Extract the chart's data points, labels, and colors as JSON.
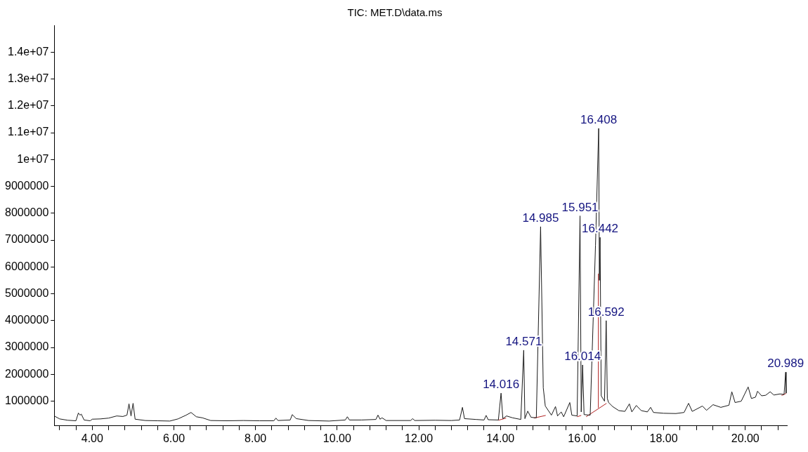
{
  "chart_data": {
    "type": "line",
    "title": "TIC: MET.D\\data.ms",
    "xlim": [
      3.07,
      21.02
    ],
    "ylim": [
      80000,
      15000000
    ],
    "xticks": [
      {
        "value": 3.2,
        "label": null
      },
      {
        "value": 3.6,
        "label": null
      },
      {
        "value": 4,
        "label": "4.00"
      },
      {
        "value": 4.4,
        "label": null
      },
      {
        "value": 4.8,
        "label": null
      },
      {
        "value": 5.2,
        "label": null
      },
      {
        "value": 5.6,
        "label": null
      },
      {
        "value": 6,
        "label": "6.00"
      },
      {
        "value": 6.4,
        "label": null
      },
      {
        "value": 6.8,
        "label": null
      },
      {
        "value": 7.2,
        "label": null
      },
      {
        "value": 7.6,
        "label": null
      },
      {
        "value": 8,
        "label": "8.00"
      },
      {
        "value": 8.4,
        "label": null
      },
      {
        "value": 8.8,
        "label": null
      },
      {
        "value": 9.2,
        "label": null
      },
      {
        "value": 9.6,
        "label": null
      },
      {
        "value": 10,
        "label": "10.00"
      },
      {
        "value": 10.4,
        "label": null
      },
      {
        "value": 10.8,
        "label": null
      },
      {
        "value": 11.2,
        "label": null
      },
      {
        "value": 11.6,
        "label": null
      },
      {
        "value": 12,
        "label": "12.00"
      },
      {
        "value": 12.4,
        "label": null
      },
      {
        "value": 12.8,
        "label": null
      },
      {
        "value": 13.2,
        "label": null
      },
      {
        "value": 13.6,
        "label": null
      },
      {
        "value": 14,
        "label": "14.00"
      },
      {
        "value": 14.4,
        "label": null
      },
      {
        "value": 14.8,
        "label": null
      },
      {
        "value": 15.2,
        "label": null
      },
      {
        "value": 15.6,
        "label": null
      },
      {
        "value": 16,
        "label": "16.00"
      },
      {
        "value": 16.4,
        "label": null
      },
      {
        "value": 16.8,
        "label": null
      },
      {
        "value": 17.2,
        "label": null
      },
      {
        "value": 17.6,
        "label": null
      },
      {
        "value": 18,
        "label": "18.00"
      },
      {
        "value": 18.4,
        "label": null
      },
      {
        "value": 18.8,
        "label": null
      },
      {
        "value": 19.2,
        "label": null
      },
      {
        "value": 19.6,
        "label": null
      },
      {
        "value": 20,
        "label": "20.00"
      },
      {
        "value": 20.4,
        "label": null
      },
      {
        "value": 20.8,
        "label": null
      }
    ],
    "yticks": [
      1000000,
      2000000,
      3000000,
      4000000,
      5000000,
      6000000,
      7000000,
      8000000,
      9000000,
      {
        "value": 10000000,
        "label": "1e+07"
      },
      {
        "value": 11000000,
        "label": "1.1e+07"
      },
      {
        "value": 12000000,
        "label": "1.2e+07"
      },
      {
        "value": 13000000,
        "label": "1.3e+07"
      },
      {
        "value": 14000000,
        "label": "1.4e+07"
      }
    ],
    "marker": "none",
    "series": [
      {
        "color": "#1a1a1a",
        "x": [
          3.07,
          3.2,
          3.4,
          3.6,
          3.66,
          3.7,
          3.73,
          3.8,
          3.95,
          4.0,
          4.2,
          4.4,
          4.6,
          4.75,
          4.85,
          4.9,
          4.95,
          5.0,
          5.05,
          5.3,
          5.6,
          5.9,
          6.1,
          6.3,
          6.42,
          6.55,
          6.7,
          6.9,
          7.3,
          7.7,
          8.1,
          8.45,
          8.5,
          8.55,
          8.85,
          8.9,
          9.0,
          9.3,
          9.8,
          10.2,
          10.25,
          10.3,
          10.6,
          10.95,
          11.0,
          11.05,
          11.1,
          11.2,
          11.8,
          11.85,
          11.9,
          12.4,
          12.8,
          13.0,
          13.07,
          13.12,
          13.4,
          13.6,
          13.65,
          13.7,
          13.95,
          14.016,
          14.06,
          14.15,
          14.3,
          14.5,
          14.571,
          14.6,
          14.67,
          14.75,
          14.88,
          14.985,
          15.05,
          15.1,
          15.25,
          15.35,
          15.4,
          15.49,
          15.55,
          15.7,
          15.75,
          15.88,
          15.951,
          15.98,
          16.014,
          16.05,
          16.2,
          16.33,
          16.408,
          16.425,
          16.442,
          16.47,
          16.55,
          16.592,
          16.62,
          16.65,
          16.75,
          16.9,
          17.05,
          17.16,
          17.22,
          17.33,
          17.45,
          17.6,
          17.68,
          17.75,
          18.0,
          18.3,
          18.5,
          18.61,
          18.7,
          18.95,
          19.05,
          19.21,
          19.4,
          19.6,
          19.67,
          19.75,
          19.9,
          20.07,
          20.15,
          20.25,
          20.3,
          20.4,
          20.5,
          20.61,
          20.7,
          20.85,
          20.95,
          20.989,
          21.0
        ],
        "values": [
          450000,
          340000,
          290000,
          270000,
          560000,
          480000,
          520000,
          300000,
          270000,
          330000,
          340000,
          370000,
          450000,
          430000,
          480000,
          900000,
          450000,
          920000,
          330000,
          280000,
          270000,
          260000,
          340000,
          480000,
          580000,
          420000,
          380000,
          280000,
          270000,
          280000,
          270000,
          270000,
          370000,
          280000,
          300000,
          500000,
          350000,
          280000,
          260000,
          300000,
          420000,
          300000,
          300000,
          320000,
          480000,
          330000,
          380000,
          280000,
          280000,
          350000,
          280000,
          290000,
          280000,
          300000,
          770000,
          350000,
          320000,
          300000,
          470000,
          310000,
          300000,
          1300000,
          350000,
          450000,
          380000,
          320000,
          2900000,
          350000,
          630000,
          400000,
          380000,
          7500000,
          1500000,
          820000,
          480000,
          800000,
          450000,
          600000,
          420000,
          950000,
          480000,
          450000,
          7900000,
          600000,
          2350000,
          500000,
          480000,
          6800000,
          11160000,
          5500000,
          7100000,
          1200000,
          1000000,
          4000000,
          1100000,
          950000,
          800000,
          650000,
          620000,
          900000,
          600000,
          840000,
          650000,
          600000,
          770000,
          580000,
          550000,
          540000,
          580000,
          920000,
          620000,
          820000,
          660000,
          870000,
          770000,
          850000,
          1350000,
          950000,
          1000000,
          1530000,
          1100000,
          1150000,
          1370000,
          1200000,
          1220000,
          1350000,
          1230000,
          1270000,
          1250000,
          2080000,
          1300000
        ]
      },
      {
        "color": "#b22222",
        "x": [
          13.95,
          14.14
        ],
        "values": [
          290000,
          370000
        ]
      },
      {
        "color": "#b22222",
        "x": [
          14.82,
          15.11
        ],
        "values": [
          370000,
          470000
        ]
      },
      {
        "color": "#b22222",
        "x": [
          15.88,
          15.98
        ],
        "values": [
          420000,
          470000
        ]
      },
      {
        "color": "#b22222",
        "x": [
          16.1,
          16.6
        ],
        "values": [
          420000,
          920000
        ]
      },
      {
        "color": "#b22222",
        "x": [
          16.4,
          16.4
        ],
        "values": [
          750000,
          5750000
        ]
      },
      {
        "color": "#b22222",
        "x": [
          20.89,
          21.0
        ],
        "values": [
          1210000,
          1290000
        ]
      }
    ],
    "annotations": [
      {
        "text": "14.016",
        "x": 14.016,
        "y": 1300000
      },
      {
        "text": "14.571",
        "x": 14.571,
        "y": 2900000
      },
      {
        "text": "14.985",
        "x": 14.985,
        "y": 7500000
      },
      {
        "text": "15.951",
        "x": 15.951,
        "y": 7900000
      },
      {
        "text": "16.014",
        "x": 16.014,
        "y": 2350000
      },
      {
        "text": "16.408",
        "x": 16.408,
        "y": 11160000
      },
      {
        "text": "16.442",
        "x": 16.442,
        "y": 7100000
      },
      {
        "text": "16.592",
        "x": 16.592,
        "y": 4000000
      },
      {
        "text": "20.989",
        "x": 20.989,
        "y": 2080000
      }
    ]
  }
}
